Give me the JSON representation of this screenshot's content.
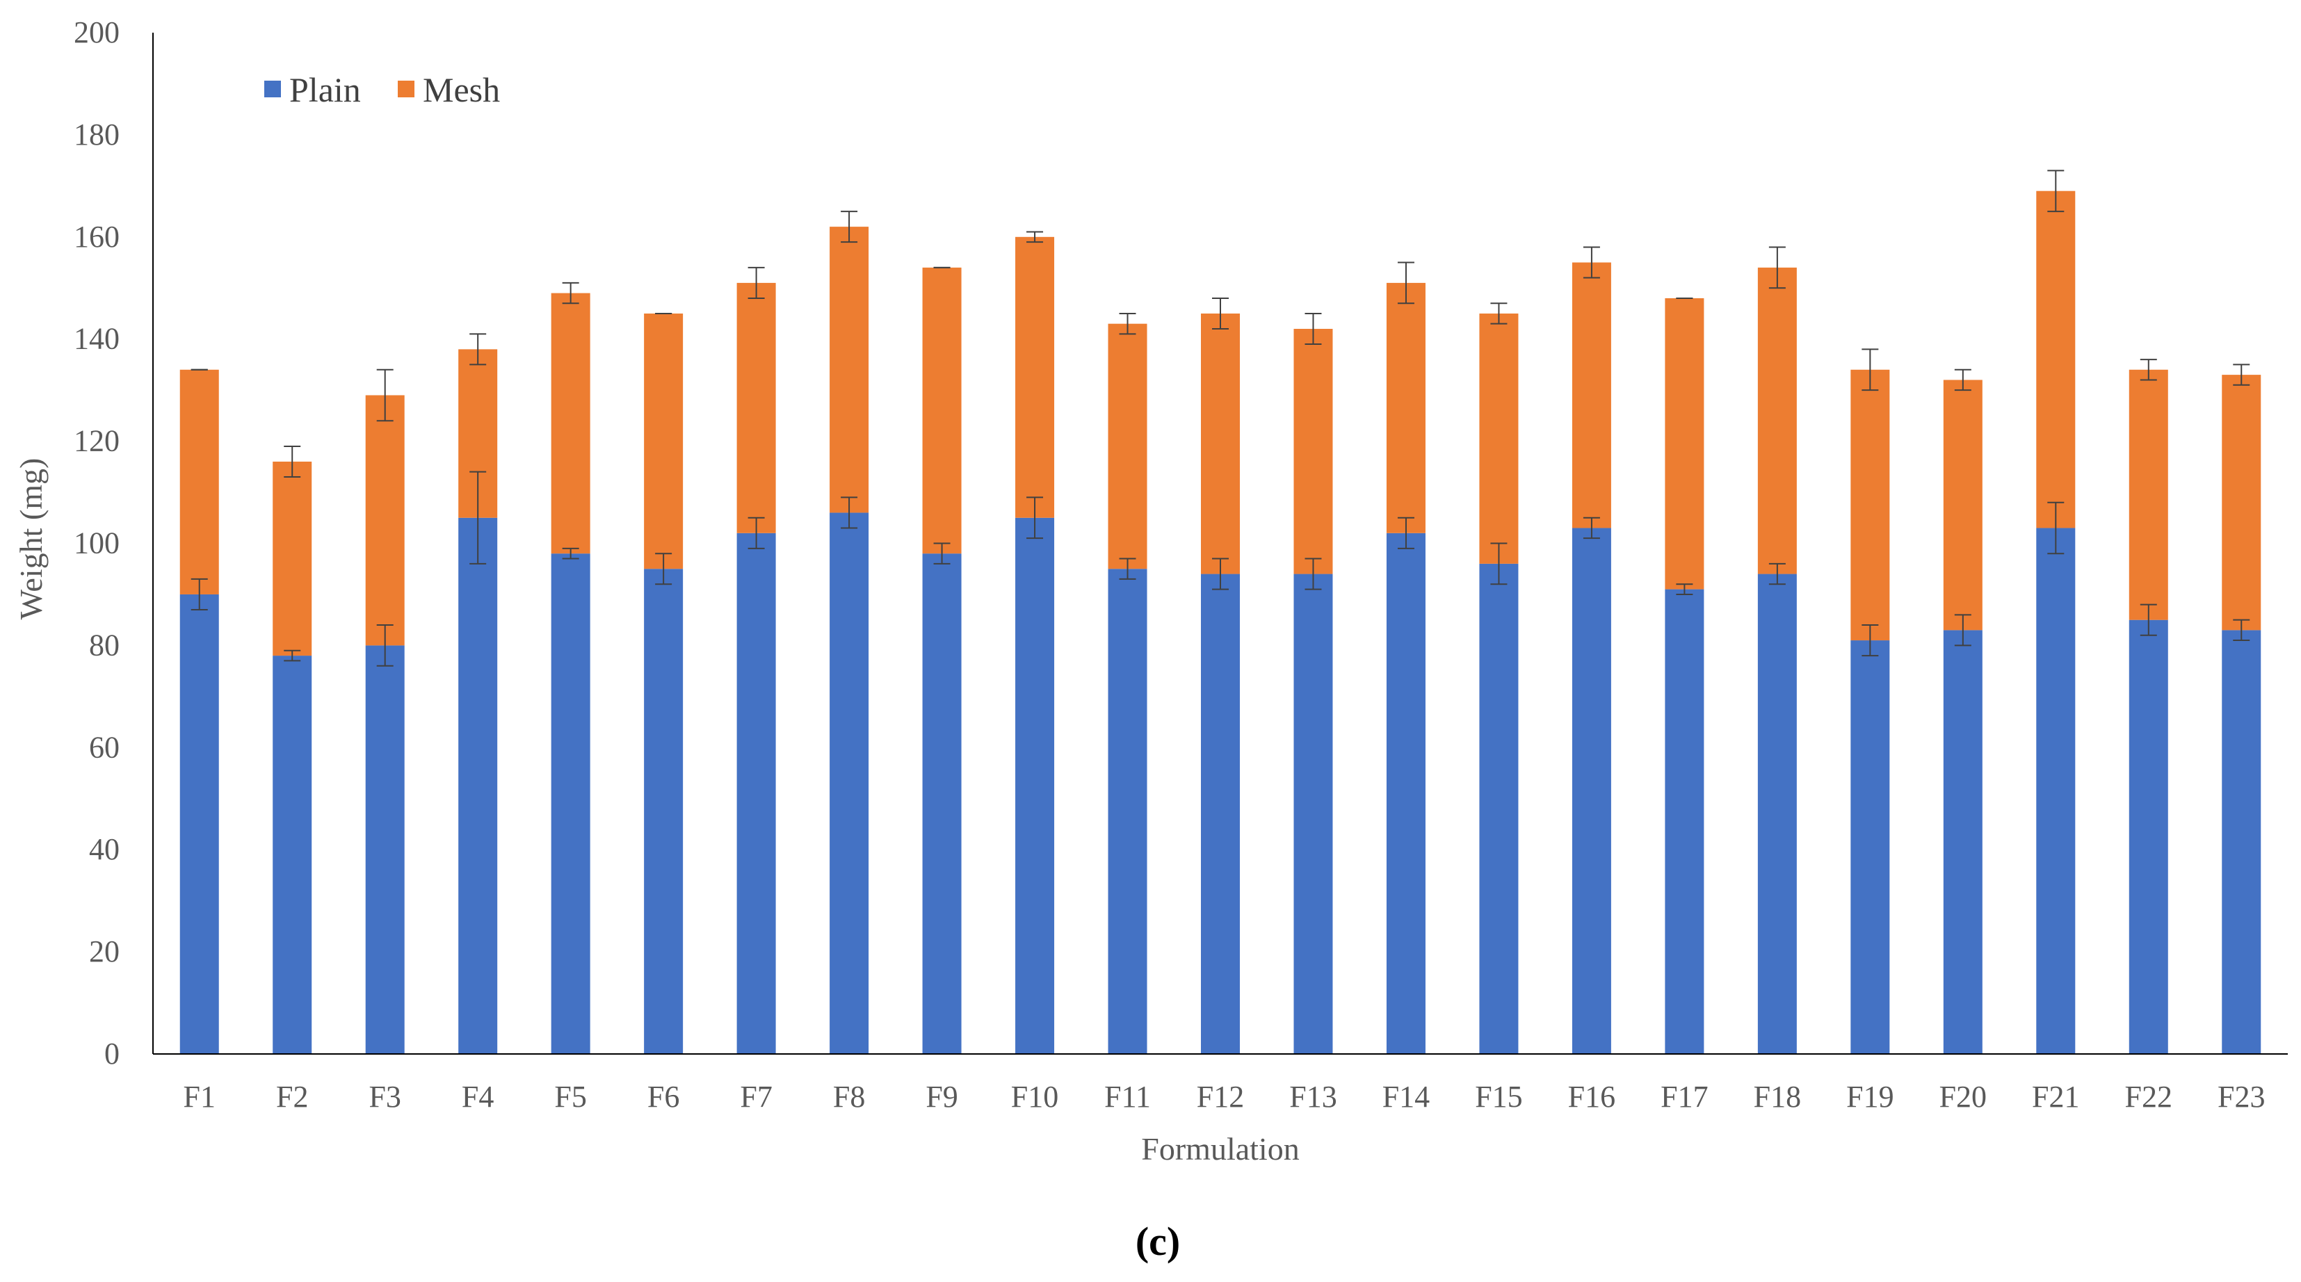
{
  "chart_data": {
    "type": "bar",
    "stacked": true,
    "title": "",
    "caption": "(c)",
    "xlabel": "Formulation",
    "ylabel": "Weight (mg)",
    "ylim": [
      0,
      200
    ],
    "yticks": [
      0,
      20,
      40,
      60,
      80,
      100,
      120,
      140,
      160,
      180,
      200
    ],
    "grid": false,
    "legend_position": "top-left",
    "categories": [
      "F1",
      "F2",
      "F3",
      "F4",
      "F5",
      "F6",
      "F7",
      "F8",
      "F9",
      "F10",
      "F11",
      "F12",
      "F13",
      "F14",
      "F15",
      "F16",
      "F17",
      "F18",
      "F19",
      "F20",
      "F21",
      "F22",
      "F23"
    ],
    "series": [
      {
        "name": "Plain",
        "color": "#4472C4",
        "values": [
          90,
          78,
          80,
          105,
          98,
          95,
          102,
          106,
          98,
          105,
          95,
          94,
          94,
          102,
          96,
          103,
          91,
          94,
          81,
          83,
          103,
          85,
          83
        ],
        "errors": [
          3,
          1,
          4,
          9,
          1,
          3,
          3,
          3,
          2,
          4,
          2,
          3,
          3,
          3,
          4,
          2,
          1,
          2,
          3,
          3,
          5,
          3,
          2
        ]
      },
      {
        "name": "Mesh",
        "color": "#ED7D31",
        "values": [
          44,
          38,
          49,
          33,
          51,
          50,
          49,
          56,
          56,
          55,
          48,
          51,
          48,
          49,
          49,
          52,
          57,
          60,
          53,
          49,
          66,
          49,
          50
        ],
        "errors": [
          0,
          3,
          5,
          3,
          2,
          0,
          3,
          3,
          0,
          1,
          2,
          3,
          3,
          4,
          2,
          3,
          0,
          4,
          4,
          2,
          4,
          2,
          2
        ]
      }
    ]
  }
}
